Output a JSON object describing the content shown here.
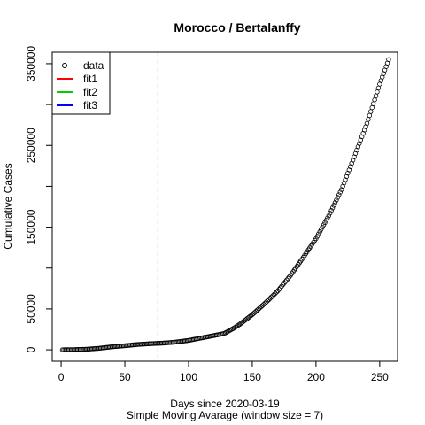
{
  "chart_data": {
    "type": "scatter",
    "title": "Morocco / Bertalanffy",
    "xlabel": "Days since 2020-03-19",
    "xlabel2": "Simple Moving Avarage (window size = 7)",
    "ylabel": "Cumulative Cases",
    "xlim": [
      -7,
      264
    ],
    "ylim": [
      -14000,
      364000
    ],
    "xticks": [
      0,
      50,
      100,
      150,
      200,
      250
    ],
    "yticks": [
      0,
      50000,
      150000,
      250000,
      350000
    ],
    "yticks_unlabeled": [
      100000,
      200000,
      300000
    ],
    "vline_x": 76,
    "legend_position": "top-left",
    "legend": [
      {
        "label": "data",
        "kind": "point",
        "color": "#000000"
      },
      {
        "label": "fit1",
        "kind": "line",
        "color": "#ff0000"
      },
      {
        "label": "fit2",
        "kind": "line",
        "color": "#00cd00"
      },
      {
        "label": "fit3",
        "kind": "line",
        "color": "#0000ff"
      }
    ],
    "series": [
      {
        "name": "data",
        "anchors": [
          [
            1,
            30
          ],
          [
            10,
            200
          ],
          [
            20,
            700
          ],
          [
            30,
            1900
          ],
          [
            40,
            3700
          ],
          [
            50,
            5000
          ],
          [
            60,
            6500
          ],
          [
            70,
            7500
          ],
          [
            80,
            8200
          ],
          [
            90,
            9500
          ],
          [
            100,
            11500
          ],
          [
            110,
            14500
          ],
          [
            120,
            17500
          ],
          [
            128,
            20000
          ],
          [
            135,
            26000
          ],
          [
            140,
            31000
          ],
          [
            150,
            43000
          ],
          [
            160,
            57000
          ],
          [
            170,
            72000
          ],
          [
            180,
            91000
          ],
          [
            190,
            113000
          ],
          [
            200,
            136000
          ],
          [
            210,
            164000
          ],
          [
            220,
            196000
          ],
          [
            230,
            236000
          ],
          [
            240,
            277000
          ],
          [
            250,
            325000
          ],
          [
            257,
            355000
          ]
        ]
      }
    ]
  }
}
